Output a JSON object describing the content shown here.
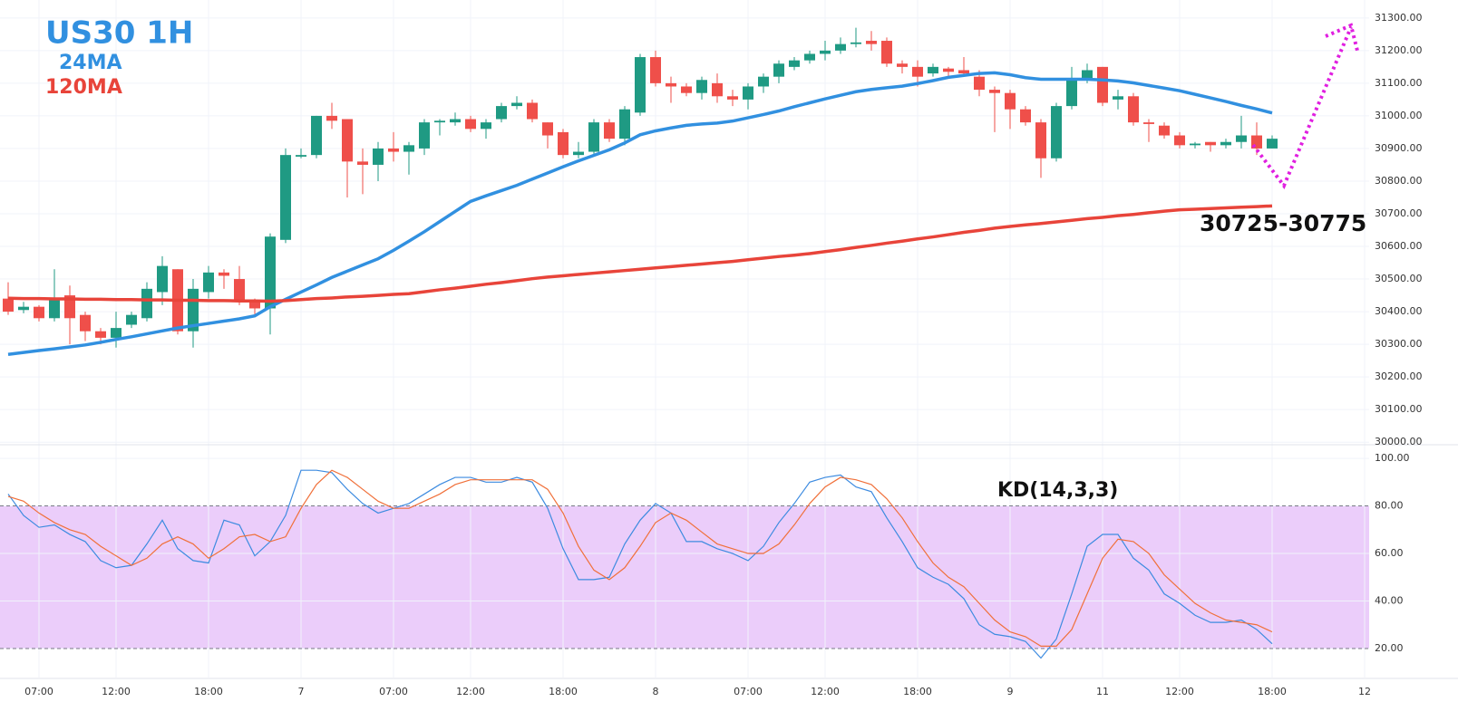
{
  "chart_data": [
    {
      "type": "candlestick",
      "title": "US30 1H",
      "annotation": "30725-30775",
      "categories": [
        null,
        null,
        "07:00",
        null,
        null,
        null,
        null,
        "12:00",
        null,
        null,
        null,
        null,
        null,
        "18:00",
        null,
        null,
        null,
        null,
        null,
        "7",
        null,
        null,
        null,
        null,
        null,
        "07:00",
        null,
        null,
        null,
        null,
        "12:00",
        null,
        null,
        null,
        null,
        null,
        "18:00",
        null,
        null,
        null,
        null,
        null,
        "8",
        null,
        null,
        null,
        null,
        null,
        "07:00",
        null,
        null,
        null,
        null,
        "12:00",
        null,
        null,
        null,
        null,
        null,
        "18:00",
        null,
        null,
        null,
        null,
        null,
        "9",
        null,
        null,
        null,
        null,
        null,
        "11",
        null,
        null,
        null,
        null,
        "12:00",
        null,
        null,
        null,
        null,
        null,
        "18:00",
        null,
        null,
        null,
        null,
        null,
        "12"
      ],
      "open": [
        30440,
        30405,
        30415,
        30380,
        30450,
        30390,
        30340,
        30320,
        30360,
        30380,
        30460,
        30530,
        30340,
        30460,
        30520,
        30500,
        30430,
        30410,
        30620,
        30875,
        30880,
        31000,
        30990,
        30860,
        30850,
        30900,
        30890,
        30900,
        30980,
        30980,
        30990,
        30960,
        30990,
        31030,
        31040,
        30980,
        30950,
        30880,
        30890,
        30980,
        30930,
        31010,
        31180,
        31100,
        31090,
        31070,
        31100,
        31060,
        31050,
        31090,
        31120,
        31150,
        31170,
        31190,
        31200,
        31220,
        31230,
        31230,
        31160,
        31150,
        31130,
        31145,
        31140,
        31120,
        31080,
        31070,
        31020,
        30980,
        30870,
        31030,
        31110,
        31150,
        31050,
        31060,
        30980,
        30970,
        30940,
        30910,
        30920,
        30910,
        30920,
        30940,
        30900,
        null,
        null,
        null,
        null,
        null,
        null
      ],
      "high": [
        30490,
        30430,
        30420,
        30530,
        30480,
        30400,
        30350,
        30400,
        30400,
        30490,
        30570,
        30530,
        30500,
        30540,
        30530,
        30540,
        30440,
        30640,
        30900,
        30900,
        31000,
        31040,
        30990,
        30900,
        30920,
        30950,
        30920,
        30990,
        30990,
        31010,
        31000,
        30990,
        31040,
        31060,
        31050,
        30980,
        30960,
        30920,
        30990,
        30990,
        31030,
        31190,
        31200,
        31120,
        31100,
        31120,
        31130,
        31080,
        31100,
        31130,
        31170,
        31180,
        31200,
        31230,
        31240,
        31270,
        31260,
        31240,
        31170,
        31170,
        31160,
        31150,
        31180,
        31140,
        31090,
        31080,
        31030,
        30990,
        31040,
        31150,
        31160,
        31150,
        31080,
        31070,
        30990,
        30980,
        30950,
        30920,
        30920,
        30930,
        31000,
        30980,
        30940,
        null,
        null,
        null,
        null,
        null,
        null
      ],
      "low": [
        30390,
        30395,
        30370,
        30370,
        30300,
        30310,
        30300,
        30290,
        30350,
        30370,
        30420,
        30330,
        30290,
        30440,
        30470,
        30420,
        30390,
        30330,
        30610,
        30870,
        30870,
        30960,
        30750,
        30760,
        30800,
        30860,
        30820,
        30880,
        30940,
        30970,
        30950,
        30930,
        30980,
        31020,
        30980,
        30900,
        30870,
        30870,
        30880,
        30920,
        30910,
        31000,
        31090,
        31040,
        31060,
        31050,
        31040,
        31030,
        31020,
        31070,
        31100,
        31140,
        31160,
        31170,
        31190,
        31210,
        31200,
        31150,
        31130,
        31090,
        31120,
        31120,
        31120,
        31060,
        30950,
        30960,
        30970,
        30810,
        30860,
        31020,
        31100,
        31030,
        31020,
        30970,
        30920,
        30930,
        30900,
        30900,
        30890,
        30900,
        30900,
        30880,
        30900,
        null,
        null,
        null,
        null,
        null,
        null
      ],
      "close": [
        30400,
        30415,
        30380,
        30440,
        30380,
        30340,
        30320,
        30350,
        30390,
        30470,
        30540,
        30340,
        30470,
        30520,
        30510,
        30430,
        30410,
        30630,
        30880,
        30880,
        31000,
        30985,
        30860,
        30850,
        30900,
        30890,
        30910,
        30980,
        30985,
        30990,
        30960,
        30980,
        31030,
        31040,
        30990,
        30940,
        30880,
        30890,
        30980,
        30930,
        31020,
        31180,
        31100,
        31090,
        31070,
        31110,
        31060,
        31050,
        31090,
        31120,
        31160,
        31170,
        31190,
        31200,
        31220,
        31225,
        31220,
        31160,
        31150,
        31120,
        31150,
        31135,
        31130,
        31080,
        31070,
        31020,
        30980,
        30870,
        31030,
        31110,
        31140,
        31040,
        31060,
        30980,
        30975,
        30940,
        30910,
        30915,
        30910,
        30920,
        30940,
        30900,
        30930,
        null,
        null,
        null,
        null,
        null,
        null
      ],
      "up_color": "#1f9a83",
      "down_color": "#ef4f4a",
      "series": [
        {
          "name": "24MA",
          "color": "#3190e0",
          "values": [
            30269,
            30275,
            30281,
            30286,
            30292,
            30298,
            30306,
            30315,
            30323,
            30332,
            30341,
            30350,
            30357,
            30364,
            30371,
            30378,
            30387,
            30415,
            30438,
            30460,
            30482,
            30505,
            30524,
            30543,
            30562,
            30588,
            30616,
            30645,
            30676,
            30707,
            30738,
            30755,
            30771,
            30787,
            30806,
            30825,
            30844,
            30862,
            30879,
            30896,
            30917,
            30942,
            30954,
            30963,
            30971,
            30975,
            30978,
            30984,
            30994,
            31004,
            31015,
            31028,
            31040,
            31052,
            31063,
            31074,
            31081,
            31086,
            31091,
            31099,
            31108,
            31118,
            31124,
            31130,
            31132,
            31126,
            31117,
            31112,
            31112,
            31112,
            31112,
            31110,
            31107,
            31101,
            31093,
            31085,
            31077,
            31066,
            31055,
            31044,
            31032,
            31021,
            31009,
            null,
            null,
            null,
            null,
            null,
            null
          ]
        },
        {
          "name": "120MA",
          "color": "#e8443a",
          "values": [
            30441,
            30440,
            30440,
            30439,
            30439,
            30438,
            30438,
            30437,
            30437,
            30436,
            30436,
            30435,
            30435,
            30434,
            30434,
            30433,
            30433,
            30432,
            30434,
            30437,
            30440,
            30442,
            30445,
            30447,
            30450,
            30453,
            30455,
            30461,
            30467,
            30472,
            30478,
            30484,
            30489,
            30495,
            30501,
            30506,
            30510,
            30514,
            30518,
            30522,
            30526,
            30530,
            30534,
            30538,
            30542,
            30546,
            30550,
            30554,
            30559,
            30564,
            30569,
            30573,
            30578,
            30584,
            30590,
            30597,
            30603,
            30610,
            30616,
            30623,
            30629,
            30636,
            30643,
            30649,
            30656,
            30661,
            30666,
            30670,
            30675,
            30680,
            30685,
            30689,
            30694,
            30698,
            30703,
            30708,
            30712,
            30714,
            30716,
            30718,
            30720,
            30722,
            30724,
            null,
            null,
            null,
            null,
            null,
            null
          ]
        }
      ],
      "ylim": [
        29995,
        31355
      ],
      "yticks": [
        {
          "value": 30000,
          "label": "30000.00"
        },
        {
          "value": 30100,
          "label": "30100.00"
        },
        {
          "value": 30200,
          "label": "30200.00"
        },
        {
          "value": 30300,
          "label": "30300.00"
        },
        {
          "value": 30400,
          "label": "30400.00"
        },
        {
          "value": 30500,
          "label": "30500.00"
        },
        {
          "value": 30600,
          "label": "30600.00"
        },
        {
          "value": 30700,
          "label": "30700.00"
        },
        {
          "value": 30800,
          "label": "30800.00"
        },
        {
          "value": 30900,
          "label": "30900.00"
        },
        {
          "value": 31000,
          "label": "31000.00"
        },
        {
          "value": 31100,
          "label": "31100.00"
        },
        {
          "value": 31200,
          "label": "31200.00"
        },
        {
          "value": 31300,
          "label": "31300.00"
        }
      ],
      "grid": true
    },
    {
      "type": "line",
      "annotation": "KD(14,3,3)",
      "series": [
        {
          "color": "#3d8be0",
          "values": [
            85,
            76,
            71,
            72,
            68,
            65,
            57,
            54,
            55,
            64,
            74,
            62,
            57,
            56,
            74,
            72,
            59,
            65,
            76,
            95,
            95,
            94,
            87,
            81,
            77,
            79,
            81,
            85,
            89,
            92,
            92,
            90,
            90,
            92,
            90,
            79,
            62,
            49,
            49,
            50,
            64,
            74,
            81,
            77,
            65,
            65,
            62,
            60,
            57,
            63,
            73,
            81,
            90,
            92,
            93,
            88,
            86,
            75,
            65,
            54,
            50,
            47,
            41,
            30,
            26,
            25,
            23,
            16,
            24,
            43,
            63,
            68,
            68,
            58,
            53,
            43,
            39,
            34,
            31,
            31,
            32,
            28,
            22,
            null,
            null,
            null,
            null,
            null,
            null
          ]
        },
        {
          "color": "#f0703a",
          "values": [
            84,
            82,
            77,
            73,
            70,
            68,
            63,
            59,
            55,
            58,
            64,
            67,
            64,
            58,
            62,
            67,
            68,
            65,
            67,
            79,
            89,
            95,
            92,
            87,
            82,
            79,
            79,
            82,
            85,
            89,
            91,
            91,
            91,
            91,
            91,
            87,
            77,
            63,
            53,
            49,
            54,
            63,
            73,
            77,
            74,
            69,
            64,
            62,
            60,
            60,
            64,
            72,
            81,
            88,
            92,
            91,
            89,
            83,
            75,
            65,
            56,
            50,
            46,
            39,
            32,
            27,
            25,
            21,
            21,
            28,
            43,
            58,
            66,
            65,
            60,
            51,
            45,
            39,
            35,
            32,
            31,
            30,
            27,
            null,
            null,
            null,
            null,
            null,
            null
          ]
        }
      ],
      "band": [
        20,
        80
      ],
      "band_color": "#ebcdfa",
      "ylim": [
        7.8,
        104.6
      ],
      "yticks": [
        {
          "value": 20,
          "label": "20.00"
        },
        {
          "value": 40,
          "label": "40.00"
        },
        {
          "value": 60,
          "label": "60.00"
        },
        {
          "value": 80,
          "label": "80.00"
        },
        {
          "value": 100,
          "label": "100.00"
        }
      ],
      "grid": true
    }
  ]
}
